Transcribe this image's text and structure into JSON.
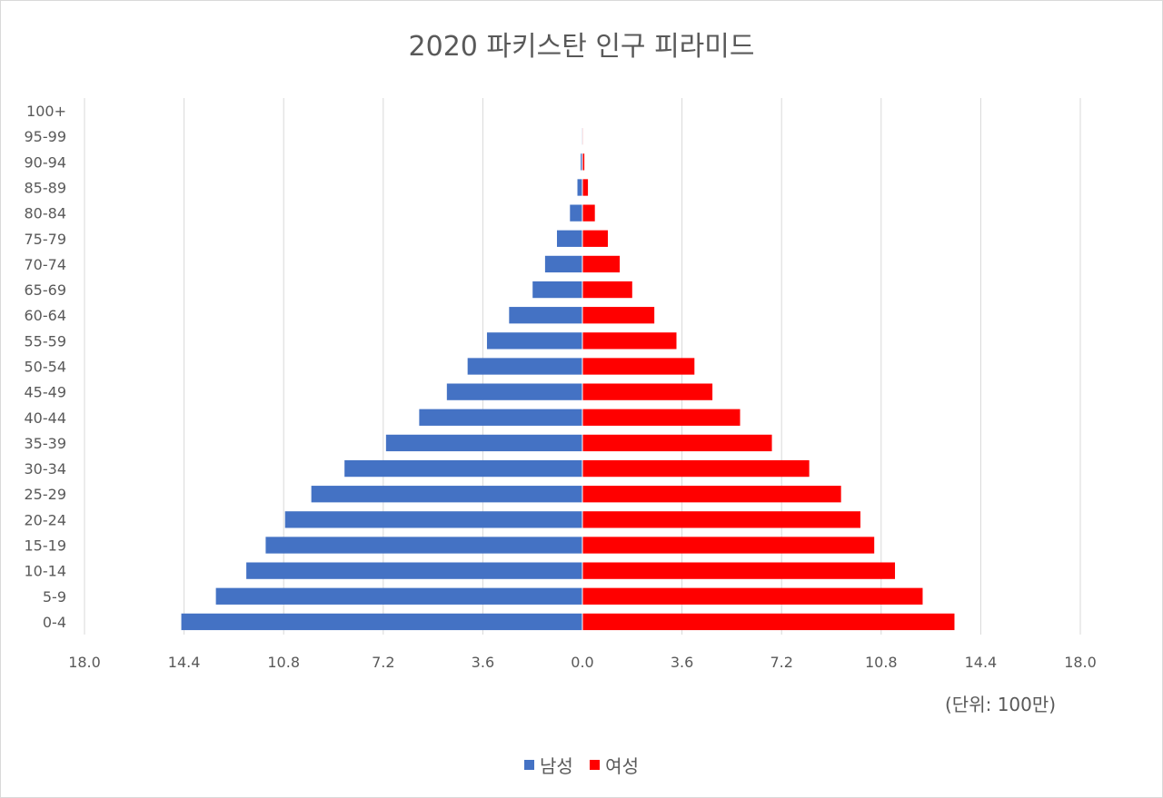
{
  "chart_data": {
    "type": "bar",
    "orientation": "horizontal",
    "title": "2020 파키스탄 인구 피라미드",
    "unit_note": "(단위: 100만)",
    "categories": [
      "100+",
      "95-99",
      "90-94",
      "85-89",
      "80-84",
      "75-79",
      "70-74",
      "65-69",
      "60-64",
      "55-59",
      "50-54",
      "45-49",
      "40-44",
      "35-39",
      "30-34",
      "25-29",
      "20-24",
      "15-19",
      "10-14",
      "5-9",
      "0-4"
    ],
    "series": [
      {
        "name": "남성",
        "color": "#4472c4",
        "values": [
          0.005,
          0.02,
          0.06,
          0.18,
          0.45,
          0.92,
          1.35,
          1.8,
          2.65,
          3.45,
          4.15,
          4.9,
          5.9,
          7.1,
          8.6,
          9.8,
          10.75,
          11.45,
          12.15,
          13.25,
          14.5
        ]
      },
      {
        "name": "여성",
        "color": "#ff0000",
        "values": [
          0.005,
          0.02,
          0.07,
          0.2,
          0.45,
          0.92,
          1.35,
          1.8,
          2.6,
          3.4,
          4.05,
          4.7,
          5.7,
          6.85,
          8.2,
          9.35,
          10.05,
          10.55,
          11.3,
          12.3,
          13.45
        ]
      }
    ],
    "x_ticks": [
      "18.0",
      "14.4",
      "10.8",
      "7.2",
      "3.6",
      "0.0",
      "3.6",
      "7.2",
      "10.8",
      "14.4",
      "18.0"
    ],
    "xlim": [
      -18,
      18
    ],
    "grid": "vertical",
    "legend_position": "bottom"
  }
}
